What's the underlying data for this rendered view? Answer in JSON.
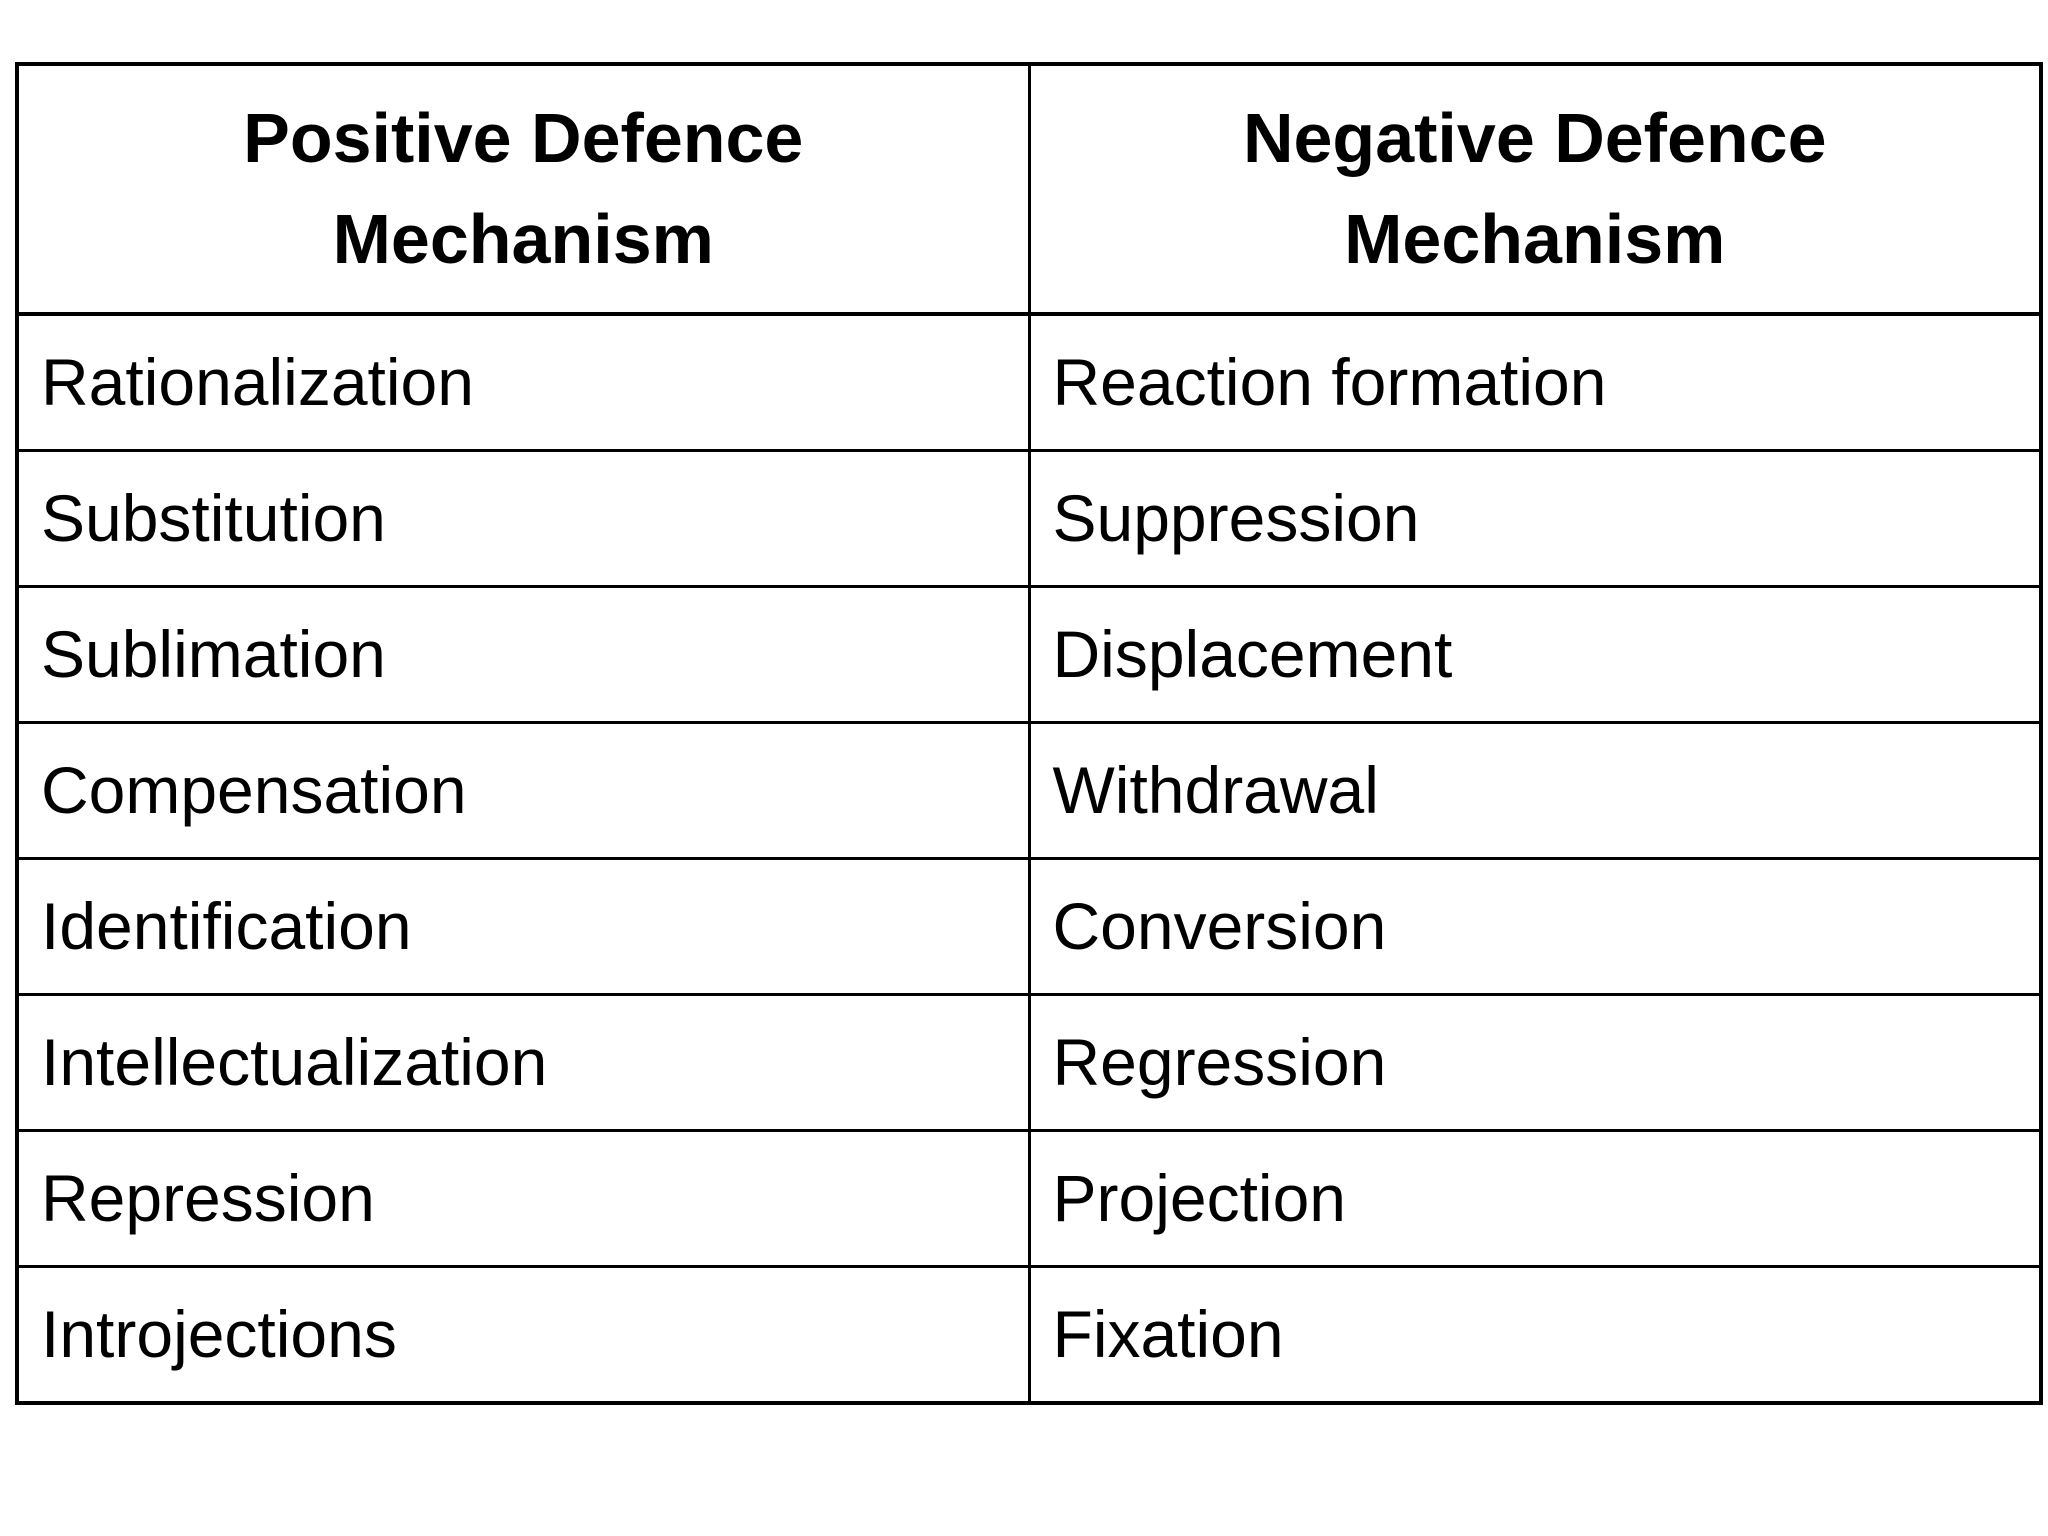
{
  "table": {
    "columns": [
      {
        "header": "Positive Defence Mechanism"
      },
      {
        "header": "Negative Defence Mechanism"
      }
    ],
    "rows": [
      [
        "Rationalization",
        "Reaction formation"
      ],
      [
        "Substitution",
        "Suppression"
      ],
      [
        "Sublimation",
        "Displacement"
      ],
      [
        "Compensation",
        "Withdrawal"
      ],
      [
        "Identification",
        "Conversion"
      ],
      [
        "Intellectualization",
        "Regression"
      ],
      [
        "Repression",
        "Projection"
      ],
      [
        "Introjections",
        "Fixation"
      ]
    ],
    "colors": {
      "border": "#000000",
      "text": "#000000",
      "background": "#ffffff"
    }
  }
}
